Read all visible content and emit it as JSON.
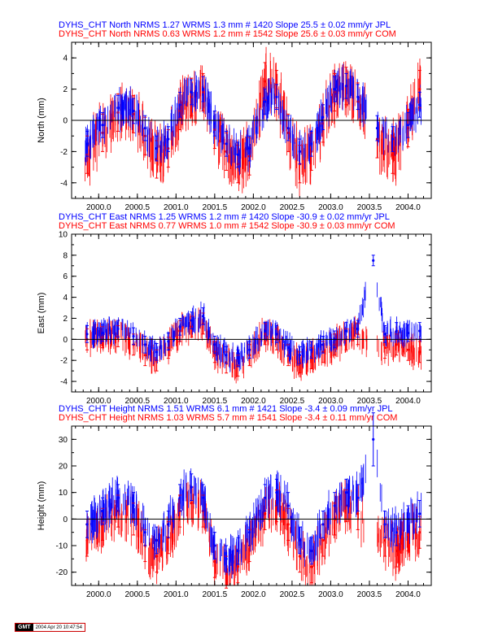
{
  "colors": {
    "jpl": "#0000ff",
    "com": "#ff0000",
    "axis": "#000000"
  },
  "chart_data": [
    {
      "type": "scatter",
      "component": "north",
      "title_lines": [
        {
          "text": "DYHS_CHT North NRMS 1.27 WRMS  1.3 mm # 1420 Slope   25.5 ±  0.02 mm/yr JPL",
          "color": "#0000ff"
        },
        {
          "text": "DYHS_CHT North NRMS 0.63 WRMS  1.2 mm # 1542 Slope   25.6 ±  0.03 mm/yr COM",
          "color": "#ff0000"
        }
      ],
      "ylabel": "North (mm)",
      "xlim": [
        1999.65,
        2004.3
      ],
      "ylim": [
        -5,
        5
      ],
      "xticks": [
        "2000.0",
        "2000.5",
        "2001.0",
        "2001.5",
        "2002.0",
        "2002.5",
        "2003.0",
        "2003.5",
        "2004.0"
      ],
      "yticks": [
        "-4",
        "-2",
        "0",
        "2",
        "4"
      ],
      "grid": false,
      "series": [
        {
          "name": "JPL",
          "color": "#0000ff",
          "x": [
            1999.85,
            2000.05,
            2000.25,
            2000.45,
            2000.6,
            2000.75,
            2000.9,
            2001.05,
            2001.2,
            2001.35,
            2001.5,
            2001.65,
            2001.8,
            2001.95,
            2002.15,
            2002.3,
            2002.45,
            2002.6,
            2002.75,
            2002.9,
            2003.05,
            2003.2,
            2003.35,
            2003.6,
            2003.8,
            2004.0,
            2004.15
          ],
          "y": [
            -1.5,
            -0.3,
            0.8,
            0.6,
            -0.5,
            -1.8,
            -1.2,
            1.0,
            1.8,
            2.0,
            -0.2,
            -1.5,
            -2.2,
            -1.8,
            1.2,
            1.5,
            -0.5,
            -2.0,
            -1.5,
            0.2,
            2.0,
            2.2,
            1.5,
            -0.5,
            -1.2,
            -0.3,
            1.0
          ],
          "err": [
            0.8,
            0.8,
            0.8,
            0.8,
            0.8,
            0.8,
            0.8,
            0.8,
            0.8,
            0.8,
            0.8,
            0.8,
            0.8,
            0.8,
            0.8,
            0.8,
            0.8,
            0.8,
            0.8,
            0.8,
            0.8,
            0.8,
            0.8,
            0.8,
            0.8,
            0.8,
            0.8
          ]
        },
        {
          "name": "COM",
          "color": "#ff0000",
          "x": [
            1999.85,
            2000.05,
            2000.25,
            2000.45,
            2000.6,
            2000.75,
            2000.9,
            2001.05,
            2001.2,
            2001.35,
            2001.5,
            2001.65,
            2001.8,
            2001.95,
            2002.15,
            2002.3,
            2002.45,
            2002.6,
            2002.75,
            2002.9,
            2003.05,
            2003.2,
            2003.35,
            2003.6,
            2003.8,
            2004.0,
            2004.15
          ],
          "y": [
            -2.2,
            -0.8,
            0.5,
            0.4,
            -1.0,
            -2.5,
            -1.8,
            0.6,
            1.5,
            1.8,
            -0.6,
            -2.0,
            -2.8,
            -2.3,
            2.5,
            2.0,
            -0.8,
            -2.8,
            -2.0,
            -0.2,
            1.8,
            2.2,
            1.2,
            -1.2,
            -2.2,
            -0.5,
            2.0
          ],
          "err": [
            1.2,
            1.2,
            1.2,
            1.2,
            1.2,
            1.2,
            1.2,
            1.2,
            1.2,
            1.2,
            1.2,
            1.2,
            1.2,
            1.2,
            1.2,
            1.2,
            1.2,
            1.2,
            1.2,
            1.2,
            1.2,
            1.2,
            1.2,
            1.2,
            1.2,
            1.2,
            1.2
          ]
        }
      ]
    },
    {
      "type": "scatter",
      "component": "east",
      "title_lines": [
        {
          "text": "DYHS_CHT East NRMS 1.25 WRMS  1.2 mm # 1420 Slope  -30.9 ±  0.02 mm/yr JPL",
          "color": "#0000ff"
        },
        {
          "text": "DYHS_CHT East NRMS 0.77 WRMS  1.0 mm # 1542 Slope  -30.9 ±  0.03 mm/yr COM",
          "color": "#ff0000"
        }
      ],
      "ylabel": "East (mm)",
      "xlim": [
        1999.65,
        2004.3
      ],
      "ylim": [
        -5,
        10
      ],
      "xticks": [
        "2000.0",
        "2000.5",
        "2001.0",
        "2001.5",
        "2002.0",
        "2002.5",
        "2003.0",
        "2003.5",
        "2004.0"
      ],
      "yticks": [
        "-4",
        "-2",
        "0",
        "2",
        "4",
        "6",
        "8",
        "10"
      ],
      "grid": false,
      "series": [
        {
          "name": "JPL",
          "color": "#0000ff",
          "x": [
            1999.85,
            2000.05,
            2000.25,
            2000.45,
            2000.6,
            2000.75,
            2000.9,
            2001.05,
            2001.2,
            2001.35,
            2001.5,
            2001.65,
            2001.8,
            2001.95,
            2002.15,
            2002.3,
            2002.45,
            2002.6,
            2002.75,
            2002.9,
            2003.05,
            2003.2,
            2003.35,
            2003.55,
            2003.7,
            2003.85,
            2004.0,
            2004.15
          ],
          "y": [
            0.5,
            0.6,
            1.0,
            0.3,
            -0.5,
            -1.2,
            -0.2,
            1.2,
            1.8,
            2.2,
            -0.5,
            -1.5,
            -1.8,
            -1.0,
            0.8,
            0.5,
            -0.8,
            -1.5,
            -1.0,
            -0.5,
            0.0,
            0.8,
            1.0,
            7.5,
            0.5,
            0.8,
            0.6,
            0.8
          ],
          "err": [
            0.8,
            0.8,
            0.8,
            0.8,
            0.8,
            0.8,
            0.8,
            0.8,
            0.8,
            0.8,
            0.8,
            0.8,
            0.8,
            0.8,
            0.8,
            0.8,
            0.8,
            0.8,
            0.8,
            0.8,
            0.8,
            0.8,
            0.8,
            0.5,
            0.8,
            0.8,
            0.8,
            0.8
          ]
        },
        {
          "name": "COM",
          "color": "#ff0000",
          "x": [
            1999.85,
            2000.05,
            2000.25,
            2000.45,
            2000.6,
            2000.75,
            2000.9,
            2001.05,
            2001.2,
            2001.35,
            2001.5,
            2001.65,
            2001.8,
            2001.95,
            2002.15,
            2002.3,
            2002.45,
            2002.6,
            2002.75,
            2002.9,
            2003.05,
            2003.2,
            2003.35,
            2003.7,
            2003.85,
            2004.0,
            2004.15
          ],
          "y": [
            0.0,
            0.2,
            0.3,
            -0.5,
            -1.5,
            -2.0,
            -0.8,
            0.8,
            1.2,
            1.5,
            -1.2,
            -2.2,
            -2.5,
            -1.5,
            0.5,
            0.0,
            -1.5,
            -2.2,
            -1.8,
            -1.2,
            -0.5,
            0.0,
            0.5,
            -0.8,
            -0.5,
            -1.0,
            -1.2
          ],
          "err": [
            1.0,
            1.0,
            1.0,
            1.0,
            1.0,
            1.0,
            1.0,
            1.0,
            1.0,
            1.0,
            1.0,
            1.0,
            1.0,
            1.0,
            1.0,
            1.0,
            1.0,
            1.0,
            1.0,
            1.0,
            1.0,
            1.0,
            1.0,
            1.0,
            1.0,
            1.0,
            1.0
          ]
        }
      ]
    },
    {
      "type": "scatter",
      "component": "height",
      "title_lines": [
        {
          "text": "DYHS_CHT Height NRMS 1.51 WRMS  6.1 mm # 1421 Slope   -3.4 ±  0.09 mm/yr JPL",
          "color": "#0000ff"
        },
        {
          "text": "DYHS_CHT Height NRMS 1.03 WRMS  5.7 mm # 1541 Slope   -3.4 ±  0.11 mm/yr COM",
          "color": "#ff0000"
        }
      ],
      "ylabel": "Height (mm)",
      "xlim": [
        1999.65,
        2004.3
      ],
      "ylim": [
        -25,
        35
      ],
      "xticks": [
        "2000.0",
        "2000.5",
        "2001.0",
        "2001.5",
        "2002.0",
        "2002.5",
        "2003.0",
        "2003.5",
        "2004.0"
      ],
      "yticks": [
        "-20",
        "-10",
        "0",
        "10",
        "20",
        "30"
      ],
      "grid": false,
      "series": [
        {
          "name": "JPL",
          "color": "#0000ff",
          "x": [
            1999.85,
            2000.05,
            2000.25,
            2000.45,
            2000.6,
            2000.75,
            2000.9,
            2001.05,
            2001.2,
            2001.35,
            2001.5,
            2001.65,
            2001.8,
            2001.95,
            2002.15,
            2002.3,
            2002.45,
            2002.6,
            2002.75,
            2002.9,
            2003.05,
            2003.2,
            2003.35,
            2003.55,
            2003.7,
            2003.85,
            2004.0,
            2004.15
          ],
          "y": [
            -2,
            3,
            8,
            5,
            -5,
            -8,
            -2,
            8,
            12,
            8,
            -10,
            -15,
            -12,
            -5,
            8,
            10,
            5,
            -8,
            -12,
            -2,
            5,
            10,
            8,
            30,
            -2,
            -5,
            0,
            2
          ],
          "err": [
            5,
            5,
            5,
            5,
            5,
            5,
            5,
            5,
            5,
            5,
            5,
            5,
            5,
            5,
            5,
            5,
            5,
            5,
            5,
            5,
            5,
            5,
            5,
            10,
            5,
            5,
            5,
            5
          ]
        },
        {
          "name": "COM",
          "color": "#ff0000",
          "x": [
            1999.85,
            2000.05,
            2000.25,
            2000.45,
            2000.6,
            2000.75,
            2000.9,
            2001.05,
            2001.2,
            2001.35,
            2001.5,
            2001.65,
            2001.8,
            2001.95,
            2002.15,
            2002.3,
            2002.45,
            2002.6,
            2002.75,
            2002.9,
            2003.05,
            2003.2,
            2003.35,
            2003.7,
            2003.85,
            2004.0,
            2004.15
          ],
          "y": [
            -8,
            -2,
            3,
            0,
            -10,
            -14,
            -7,
            3,
            6,
            3,
            -16,
            -20,
            -18,
            -10,
            2,
            5,
            -2,
            -14,
            -18,
            -8,
            0,
            5,
            2,
            -8,
            -12,
            -6,
            -5
          ],
          "err": [
            6,
            6,
            6,
            6,
            6,
            6,
            6,
            6,
            6,
            6,
            6,
            6,
            6,
            6,
            6,
            6,
            6,
            6,
            6,
            6,
            6,
            6,
            6,
            6,
            6,
            6,
            6
          ]
        }
      ]
    }
  ],
  "footer": {
    "logo": "GMT",
    "timestamp": "2004 Apr 20 10:47:54"
  }
}
